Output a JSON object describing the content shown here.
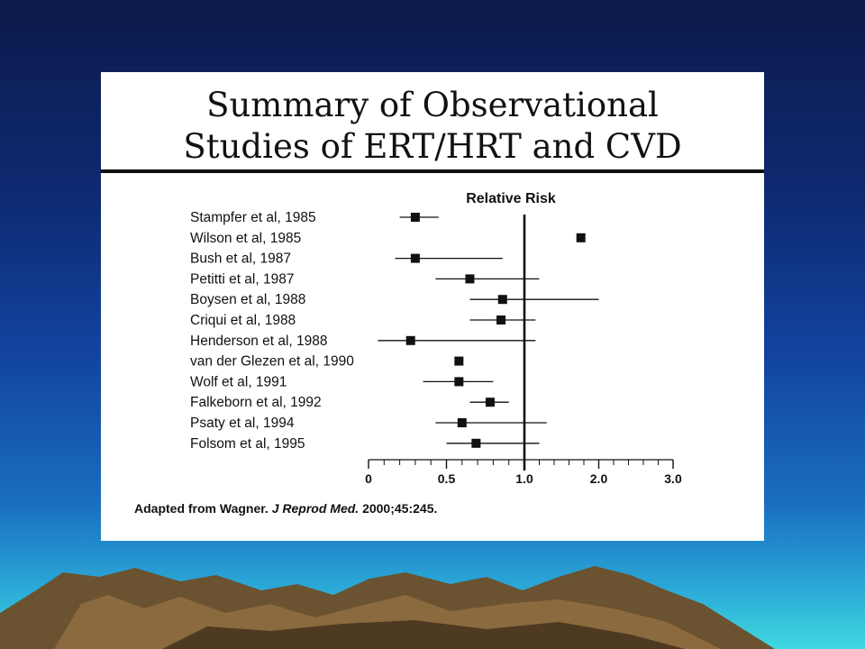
{
  "slide": {
    "title_line1": "Summary of Observational",
    "title_line2": "Studies of ERT/HRT and CVD",
    "credit_prefix": "Adapted from Wagner. ",
    "credit_journal": "J Reprod Med.",
    "credit_suffix": " 2000;45:245."
  },
  "colors": {
    "background_top": "#0c1a4a",
    "background_bottom": "#3fd8e0",
    "mountain": "#6b5230",
    "panel": "#ffffff",
    "ink": "#111111"
  },
  "chart_data": {
    "type": "forest",
    "title": "Relative Risk",
    "xlabel": "",
    "ylabel": "",
    "xlim": [
      0,
      3.0
    ],
    "x_ticks": [
      0,
      0.5,
      1.0,
      2.0,
      3.0
    ],
    "x_tick_labels": [
      "0",
      "0.5",
      "1.0",
      "2.0",
      "3.0"
    ],
    "reference_line": 1.0,
    "grid": false,
    "legend": "none",
    "studies": [
      {
        "label": "Stampfer et al, 1985",
        "estimate": 0.3,
        "ci_low": 0.2,
        "ci_high": 0.45
      },
      {
        "label": "Wilson et al, 1985",
        "estimate": 1.76,
        "ci_low": null,
        "ci_high": null
      },
      {
        "label": "Bush et al, 1987",
        "estimate": 0.3,
        "ci_low": 0.17,
        "ci_high": 0.86
      },
      {
        "label": "Petitti et al, 1987",
        "estimate": 0.65,
        "ci_low": 0.43,
        "ci_high": 1.2
      },
      {
        "label": "Boysen et al, 1988",
        "estimate": 0.86,
        "ci_low": 0.65,
        "ci_high": 2.0
      },
      {
        "label": "Criqui et al, 1988",
        "estimate": 0.85,
        "ci_low": 0.65,
        "ci_high": 1.15
      },
      {
        "label": "Henderson et al, 1988",
        "estimate": 0.27,
        "ci_low": 0.06,
        "ci_high": 1.15
      },
      {
        "label": "van der Glezen et al, 1990",
        "estimate": 0.58,
        "ci_low": null,
        "ci_high": null
      },
      {
        "label": "Wolf et al, 1991",
        "estimate": 0.58,
        "ci_low": 0.35,
        "ci_high": 0.8
      },
      {
        "label": "Falkeborn et al, 1992",
        "estimate": 0.78,
        "ci_low": 0.65,
        "ci_high": 0.9
      },
      {
        "label": "Psaty et al, 1994",
        "estimate": 0.6,
        "ci_low": 0.43,
        "ci_high": 1.3
      },
      {
        "label": "Folsom et al, 1995",
        "estimate": 0.69,
        "ci_low": 0.5,
        "ci_high": 1.2
      }
    ]
  }
}
